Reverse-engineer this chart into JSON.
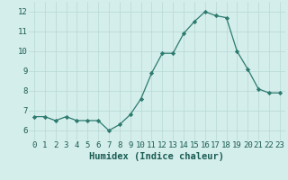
{
  "x": [
    0,
    1,
    2,
    3,
    4,
    5,
    6,
    7,
    8,
    9,
    10,
    11,
    12,
    13,
    14,
    15,
    16,
    17,
    18,
    19,
    20,
    21,
    22,
    23
  ],
  "y": [
    6.7,
    6.7,
    6.5,
    6.7,
    6.5,
    6.5,
    6.5,
    6.0,
    6.3,
    6.8,
    7.6,
    8.9,
    9.9,
    9.9,
    10.9,
    11.5,
    12.0,
    11.8,
    11.7,
    10.0,
    9.1,
    8.1,
    7.9,
    7.9
  ],
  "xlabel": "Humidex (Indice chaleur)",
  "xlim": [
    -0.5,
    23.5
  ],
  "ylim": [
    5.5,
    12.5
  ],
  "yticks": [
    6,
    7,
    8,
    9,
    10,
    11,
    12
  ],
  "xticks": [
    0,
    1,
    2,
    3,
    4,
    5,
    6,
    7,
    8,
    9,
    10,
    11,
    12,
    13,
    14,
    15,
    16,
    17,
    18,
    19,
    20,
    21,
    22,
    23
  ],
  "line_color": "#2d7a6e",
  "marker": "D",
  "marker_size": 2.2,
  "bg_color": "#d4eeec",
  "grid_color": "#b8d8d4",
  "xlabel_color": "#1a5c52",
  "tick_color": "#1a5c52",
  "xlabel_fontsize": 7.5,
  "tick_fontsize": 6.5
}
